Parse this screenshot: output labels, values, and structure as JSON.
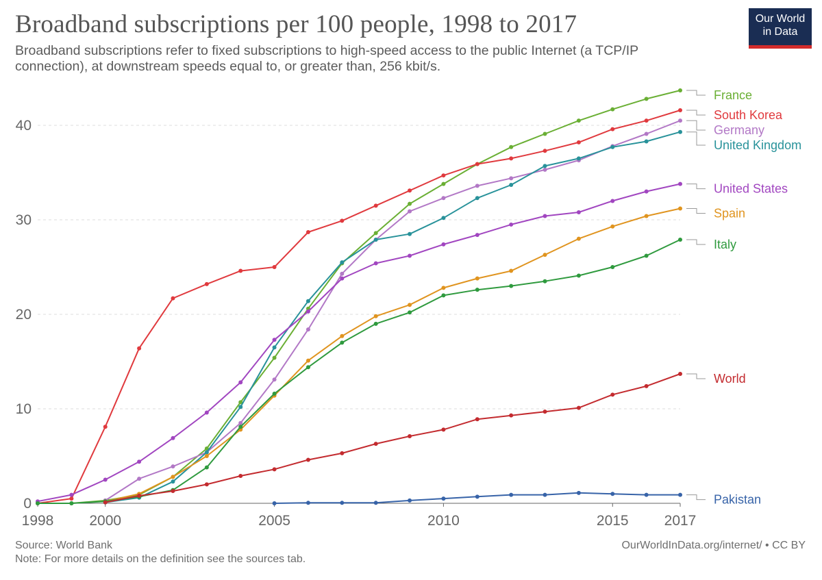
{
  "header": {
    "title": "Broadband subscriptions per 100 people, 1998 to 2017",
    "subtitle": "Broadband subscriptions refer to fixed subscriptions to high-speed access to the public Internet (a TCP/IP connection), at downstream speeds equal to, or greater than, 256 kbit/s."
  },
  "logo": {
    "line1": "Our World",
    "line2": "in Data"
  },
  "footer": {
    "source": "Source: World Bank",
    "note": "Note: For more details on the definition see the sources tab.",
    "credit": "OurWorldInData.org/internet/ • CC BY"
  },
  "colors": {
    "grid": "#dddddd",
    "axis": "#666666",
    "connector": "#999999",
    "logo_bg": "#1a2d53",
    "logo_bar": "#d22b2b"
  },
  "chart_data": {
    "type": "line",
    "title": "Broadband subscriptions per 100 people, 1998 to 2017",
    "xlabel": "",
    "ylabel": "",
    "xlim": [
      1998,
      2017
    ],
    "ylim": [
      0,
      43.7
    ],
    "x_ticks": [
      1998,
      2000,
      2005,
      2010,
      2015,
      2017
    ],
    "y_ticks": [
      0,
      10,
      20,
      30,
      40
    ],
    "grid": true,
    "legend": "right-end labels",
    "series": [
      {
        "name": "France",
        "color": "#6aaf34",
        "x": [
          1998,
          1999,
          2000,
          2001,
          2002,
          2003,
          2004,
          2005,
          2006,
          2007,
          2008,
          2009,
          2010,
          2011,
          2012,
          2013,
          2014,
          2015,
          2016,
          2017
        ],
        "values": [
          0,
          0,
          0.3,
          0.9,
          2.8,
          5.8,
          10.7,
          15.4,
          20.6,
          25.4,
          28.6,
          31.7,
          33.8,
          35.9,
          37.7,
          39.1,
          40.5,
          41.7,
          42.8,
          43.7
        ]
      },
      {
        "name": "South Korea",
        "color": "#e03a3e",
        "x": [
          1998,
          1999,
          2000,
          2001,
          2002,
          2003,
          2004,
          2005,
          2006,
          2007,
          2008,
          2009,
          2010,
          2011,
          2012,
          2013,
          2014,
          2015,
          2016,
          2017
        ],
        "values": [
          0,
          0.5,
          8.1,
          16.4,
          21.7,
          23.2,
          24.6,
          25.0,
          28.7,
          29.9,
          31.5,
          33.1,
          34.7,
          35.9,
          36.5,
          37.3,
          38.2,
          39.6,
          40.5,
          41.6
        ]
      },
      {
        "name": "Germany",
        "color": "#b278c6",
        "x": [
          2000,
          2001,
          2002,
          2003,
          2004,
          2005,
          2006,
          2007,
          2008,
          2009,
          2010,
          2011,
          2012,
          2013,
          2014,
          2015,
          2016,
          2017
        ],
        "values": [
          0.3,
          2.6,
          3.9,
          5.4,
          8.5,
          13.1,
          18.4,
          24.3,
          27.9,
          30.9,
          32.3,
          33.6,
          34.4,
          35.3,
          36.3,
          37.8,
          39.1,
          40.5
        ]
      },
      {
        "name": "United Kingdom",
        "color": "#28929a",
        "x": [
          2000,
          2001,
          2002,
          2003,
          2004,
          2005,
          2006,
          2007,
          2008,
          2009,
          2010,
          2011,
          2012,
          2013,
          2014,
          2015,
          2016,
          2017
        ],
        "values": [
          0.1,
          0.6,
          2.3,
          5.4,
          10.2,
          16.5,
          21.4,
          25.5,
          27.9,
          28.5,
          30.2,
          32.3,
          33.7,
          35.7,
          36.5,
          37.7,
          38.3,
          39.3
        ]
      },
      {
        "name": "United States",
        "color": "#a146c0",
        "x": [
          1998,
          1999,
          2000,
          2001,
          2002,
          2003,
          2004,
          2005,
          2006,
          2007,
          2008,
          2009,
          2010,
          2011,
          2012,
          2013,
          2014,
          2015,
          2016,
          2017
        ],
        "values": [
          0.2,
          0.9,
          2.5,
          4.4,
          6.9,
          9.6,
          12.8,
          17.3,
          20.3,
          23.8,
          25.4,
          26.2,
          27.4,
          28.4,
          29.5,
          30.4,
          30.8,
          32.0,
          33.0,
          33.8
        ]
      },
      {
        "name": "Spain",
        "color": "#e0941f",
        "x": [
          2000,
          2001,
          2002,
          2003,
          2004,
          2005,
          2006,
          2007,
          2008,
          2009,
          2010,
          2011,
          2012,
          2013,
          2014,
          2015,
          2016,
          2017
        ],
        "values": [
          0.2,
          1.0,
          2.8,
          5.0,
          7.8,
          11.4,
          15.1,
          17.7,
          19.8,
          21.0,
          22.8,
          23.8,
          24.6,
          26.3,
          28.0,
          29.3,
          30.4,
          31.2
        ]
      },
      {
        "name": "Italy",
        "color": "#2f9a3e",
        "x": [
          1998,
          1999,
          2000,
          2001,
          2002,
          2003,
          2004,
          2005,
          2006,
          2007,
          2008,
          2009,
          2010,
          2011,
          2012,
          2013,
          2014,
          2015,
          2016,
          2017
        ],
        "values": [
          0,
          0,
          0.2,
          0.7,
          1.4,
          3.8,
          8.1,
          11.6,
          14.4,
          17.0,
          19.0,
          20.2,
          22.0,
          22.6,
          23.0,
          23.5,
          24.1,
          25.0,
          26.2,
          27.9
        ]
      },
      {
        "name": "World",
        "color": "#c32b2f",
        "x": [
          2000,
          2001,
          2002,
          2003,
          2004,
          2005,
          2006,
          2007,
          2008,
          2009,
          2010,
          2011,
          2012,
          2013,
          2014,
          2015,
          2016,
          2017
        ],
        "values": [
          0.1,
          0.8,
          1.3,
          2.0,
          2.9,
          3.6,
          4.6,
          5.3,
          6.3,
          7.1,
          7.8,
          8.9,
          9.3,
          9.7,
          10.1,
          11.5,
          12.4,
          13.7
        ]
      },
      {
        "name": "Pakistan",
        "color": "#3763a8",
        "x": [
          2005,
          2006,
          2007,
          2008,
          2009,
          2010,
          2011,
          2012,
          2013,
          2014,
          2015,
          2016,
          2017
        ],
        "values": [
          0,
          0.05,
          0.05,
          0.05,
          0.3,
          0.5,
          0.7,
          0.9,
          0.9,
          1.1,
          1.0,
          0.9,
          0.9
        ]
      }
    ]
  }
}
